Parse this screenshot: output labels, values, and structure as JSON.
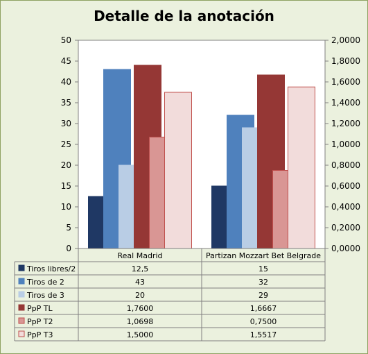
{
  "chart_data": {
    "type": "bar",
    "title": "Detalle de la anotación",
    "categories": [
      "Real Madrid",
      "Partizan Mozzart Bet Belgrade"
    ],
    "series": [
      {
        "name": "Tiros libres/2",
        "values": [
          12.5,
          15
        ],
        "display": [
          "12,5",
          "15"
        ],
        "axis": "left",
        "color": "#1f3864",
        "border": "#1f3864"
      },
      {
        "name": "Tiros de 2",
        "values": [
          43,
          32
        ],
        "display": [
          "43",
          "32"
        ],
        "axis": "left",
        "color": "#4f81bd",
        "border": "#4f81bd"
      },
      {
        "name": "Tiros de 3",
        "values": [
          20,
          29
        ],
        "display": [
          "20",
          "29"
        ],
        "axis": "left",
        "color": "#b9cde5",
        "border": "#b9cde5"
      },
      {
        "name": "PpP TL",
        "values": [
          1.76,
          1.6667
        ],
        "display": [
          "1,7600",
          "1,6667"
        ],
        "axis": "right",
        "color": "#953735",
        "border": "#953735"
      },
      {
        "name": "PpP T2",
        "values": [
          1.0698,
          0.75
        ],
        "display": [
          "1,0698",
          "0,7500"
        ],
        "axis": "right",
        "color": "#d99694",
        "border": "#c0504d"
      },
      {
        "name": "PpP T3",
        "values": [
          1.5,
          1.5517
        ],
        "display": [
          "1,5000",
          "1,5517"
        ],
        "axis": "right",
        "color": "#f2dcdb",
        "border": "#c0504d"
      }
    ],
    "y_left": {
      "min": 0,
      "max": 50,
      "step": 5
    },
    "y_right": {
      "min": 0,
      "max": 2,
      "step": 0.2
    },
    "y_left_ticks": [
      "0",
      "5",
      "10",
      "15",
      "20",
      "25",
      "30",
      "35",
      "40",
      "45",
      "50"
    ],
    "y_right_ticks": [
      "0,0000",
      "0,2000",
      "0,4000",
      "0,6000",
      "0,8000",
      "1,0000",
      "1,2000",
      "1,4000",
      "1,6000",
      "1,8000",
      "2,0000"
    ],
    "grid": false,
    "legend": "data-table",
    "plot_background": "#ffffff",
    "frame_background": "#ebf1de"
  }
}
